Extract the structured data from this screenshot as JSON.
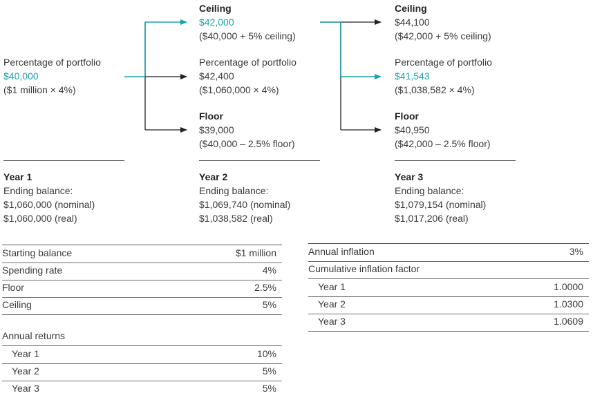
{
  "year1": {
    "method": "Percentage of portfolio",
    "amount": "$40,000",
    "calc": "($1 million × 4%)",
    "title": "Year 1",
    "ending_label": "Ending balance:",
    "nominal": "$1,060,000 (nominal)",
    "real": "$1,060,000 (real)"
  },
  "year2": {
    "ceiling": {
      "label": "Ceiling",
      "amount": "$42,000",
      "calc": "($40,000 + 5% ceiling)"
    },
    "pct": {
      "label": "Percentage of portfolio",
      "amount": "$42,400",
      "calc": "($1,060,000 × 4%)"
    },
    "floor": {
      "label": "Floor",
      "amount": "$39,000",
      "calc": "($40,000 – 2.5% floor)"
    },
    "title": "Year 2",
    "ending_label": "Ending balance:",
    "nominal": "$1,069,740 (nominal)",
    "real": "$1,038,582 (real)"
  },
  "year3": {
    "ceiling": {
      "label": "Ceiling",
      "amount": "$44,100",
      "calc": "($42,000 + 5% ceiling)"
    },
    "pct": {
      "label": "Percentage of portfolio",
      "amount": "$41,543",
      "calc": "($1,038,582 × 4%)"
    },
    "floor": {
      "label": "Floor",
      "amount": "$40,950",
      "calc": "($42,000 – 2.5% floor)"
    },
    "title": "Year 3",
    "ending_label": "Ending balance:",
    "nominal": "$1,079,154 (nominal)",
    "real": "$1,017,206 (real)"
  },
  "assumptions": [
    {
      "label": "Starting balance",
      "value": "$1 million"
    },
    {
      "label": "Spending rate",
      "value": "4%"
    },
    {
      "label": "Floor",
      "value": "2.5%"
    },
    {
      "label": "Ceiling",
      "value": "5%"
    }
  ],
  "returns": {
    "header": "Annual returns",
    "rows": [
      {
        "label": "Year 1",
        "value": "10%"
      },
      {
        "label": "Year 2",
        "value": "5%"
      },
      {
        "label": "Year 3",
        "value": "5%"
      }
    ]
  },
  "inflation": {
    "annual_label": "Annual inflation",
    "annual_value": "3%",
    "cumulative_label": "Cumulative inflation factor",
    "rows": [
      {
        "label": "Year 1",
        "value": "1.0000"
      },
      {
        "label": "Year 2",
        "value": "1.0300"
      },
      {
        "label": "Year 3",
        "value": "1.0609"
      }
    ]
  },
  "colors": {
    "accent": "#1aa0ae",
    "line": "#222222",
    "text": "#3a3a3a"
  }
}
